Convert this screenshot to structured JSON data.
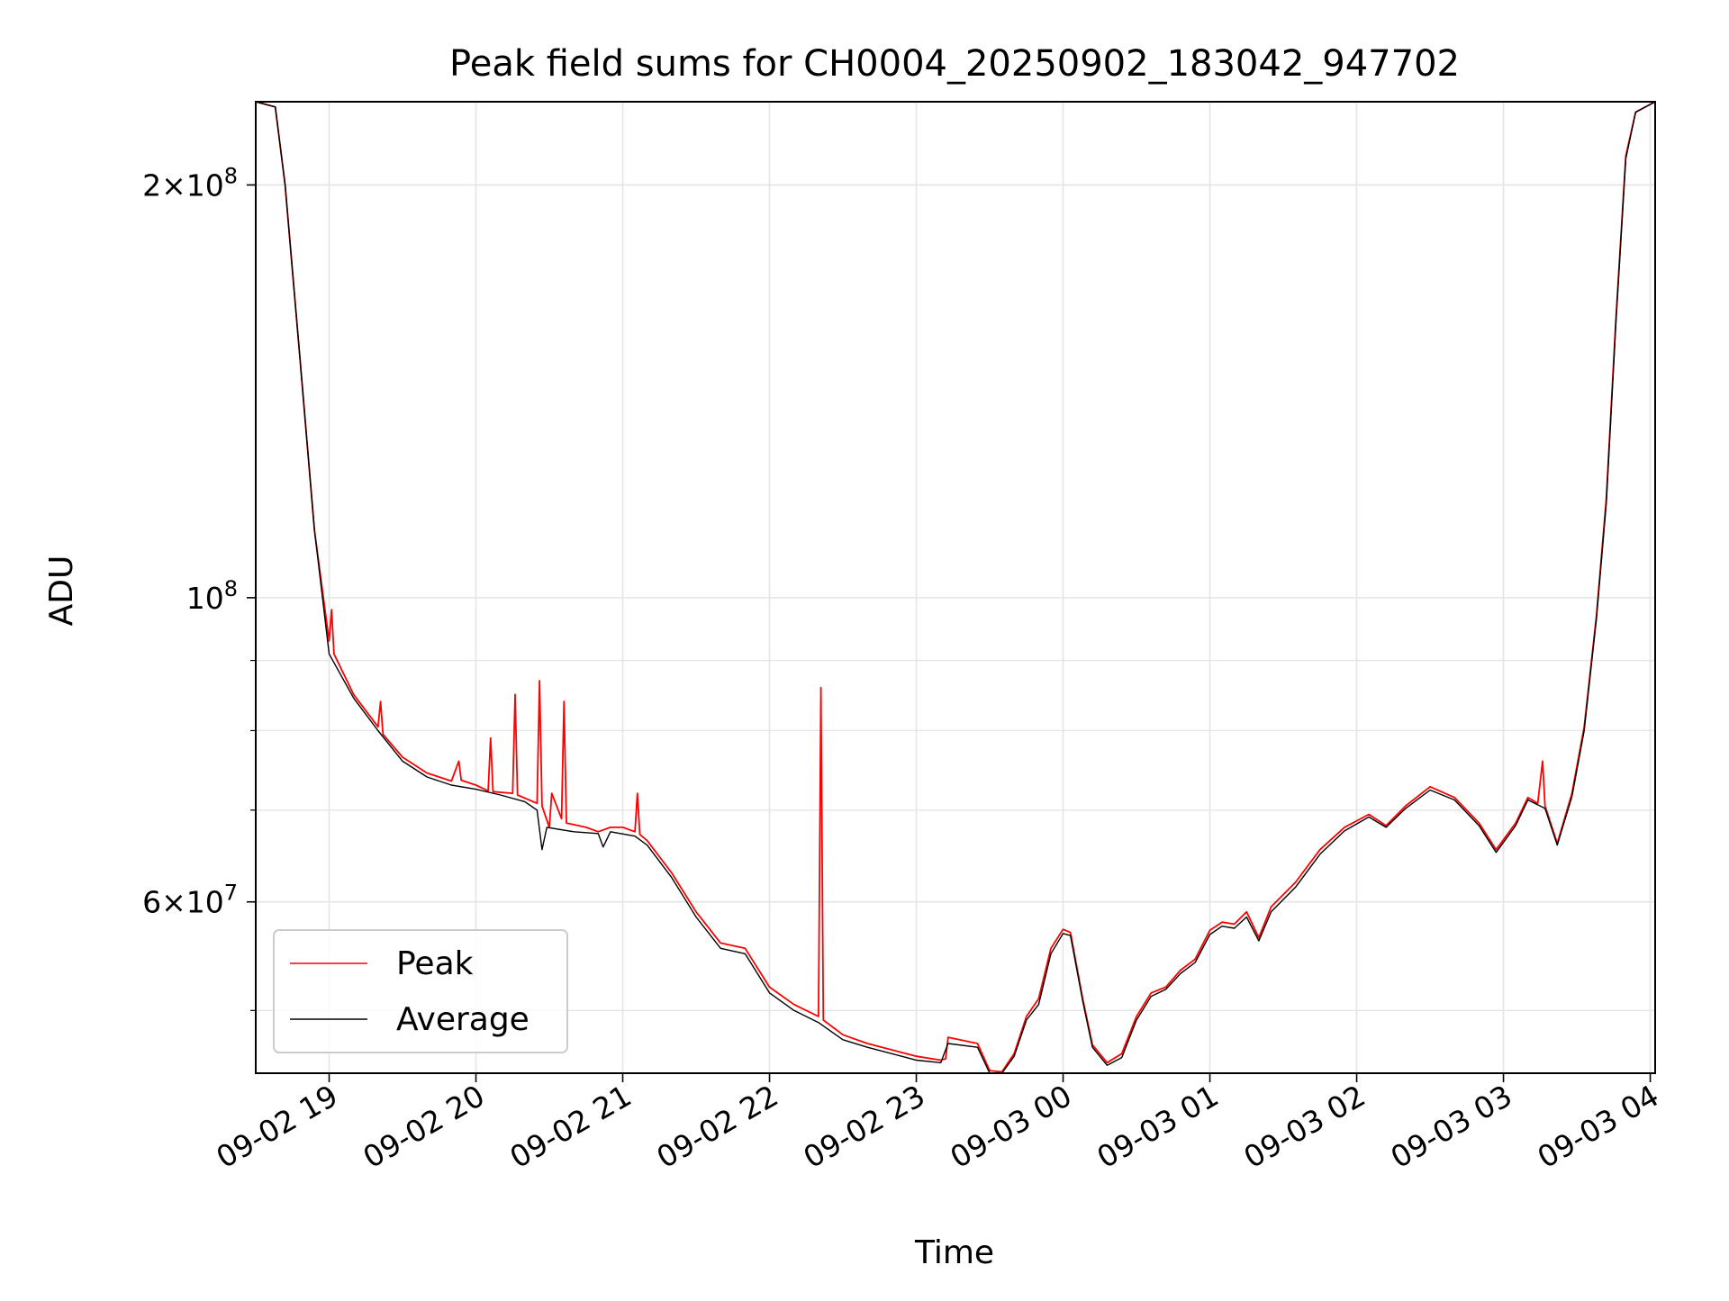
{
  "chart_data": {
    "type": "line",
    "title": "Peak field sums for CH0004_20250902_183042_947702",
    "xlabel": "Time",
    "ylabel": "ADU",
    "y_scale": "log",
    "grid": true,
    "legend_placement": "lower-left",
    "xlim": [
      "2025-09-02 18:30",
      "2025-09-03 04:02"
    ],
    "ylim": [
      45000000,
      230000000
    ],
    "x_ticks": [
      {
        "label": "09-02 19",
        "t": "2025-09-02 19:00"
      },
      {
        "label": "09-02 20",
        "t": "2025-09-02 20:00"
      },
      {
        "label": "09-02 21",
        "t": "2025-09-02 21:00"
      },
      {
        "label": "09-02 22",
        "t": "2025-09-02 22:00"
      },
      {
        "label": "09-02 23",
        "t": "2025-09-02 23:00"
      },
      {
        "label": "09-03 00",
        "t": "2025-09-03 00:00"
      },
      {
        "label": "09-03 01",
        "t": "2025-09-03 01:00"
      },
      {
        "label": "09-03 02",
        "t": "2025-09-03 02:00"
      },
      {
        "label": "09-03 03",
        "t": "2025-09-03 03:00"
      },
      {
        "label": "09-03 04",
        "t": "2025-09-03 04:00"
      }
    ],
    "y_ticks_major": [
      {
        "value": 100000000,
        "base": "10",
        "exp": "8"
      },
      {
        "value": 200000000,
        "mant": "2",
        "base": "10",
        "exp": "8"
      },
      {
        "value": 60000000,
        "mant": "6",
        "base": "10",
        "exp": "7"
      }
    ],
    "y_ticks_minor": [
      50000000,
      60000000,
      70000000,
      80000000,
      90000000,
      200000000
    ],
    "series": [
      {
        "name": "Peak",
        "color": "#ff0000",
        "points": [
          [
            "2025-09-02 18:30",
            230000000
          ],
          [
            "2025-09-02 18:38",
            228000000
          ],
          [
            "2025-09-02 18:42",
            200000000
          ],
          [
            "2025-09-02 18:48",
            150000000
          ],
          [
            "2025-09-02 18:54",
            112000000
          ],
          [
            "2025-09-02 19:00",
            93000000
          ],
          [
            "2025-09-02 19:01",
            98000000
          ],
          [
            "2025-09-02 19:02",
            91000000
          ],
          [
            "2025-09-02 19:10",
            85000000
          ],
          [
            "2025-09-02 19:20",
            80500000
          ],
          [
            "2025-09-02 19:21",
            84000000
          ],
          [
            "2025-09-02 19:22",
            79500000
          ],
          [
            "2025-09-02 19:30",
            76500000
          ],
          [
            "2025-09-02 19:40",
            74500000
          ],
          [
            "2025-09-02 19:50",
            73500000
          ],
          [
            "2025-09-02 19:53",
            76000000
          ],
          [
            "2025-09-02 19:54",
            73600000
          ],
          [
            "2025-09-02 20:00",
            73000000
          ],
          [
            "2025-09-02 20:05",
            72300000
          ],
          [
            "2025-09-02 20:06",
            79000000
          ],
          [
            "2025-09-02 20:07",
            72200000
          ],
          [
            "2025-09-02 20:15",
            72000000
          ],
          [
            "2025-09-02 20:16",
            85000000
          ],
          [
            "2025-09-02 20:17",
            71800000
          ],
          [
            "2025-09-02 20:25",
            70800000
          ],
          [
            "2025-09-02 20:26",
            87000000
          ],
          [
            "2025-09-02 20:27",
            70500000
          ],
          [
            "2025-09-02 20:30",
            68000000
          ],
          [
            "2025-09-02 20:31",
            72000000
          ],
          [
            "2025-09-02 20:35",
            69000000
          ],
          [
            "2025-09-02 20:36",
            84000000
          ],
          [
            "2025-09-02 20:37",
            68500000
          ],
          [
            "2025-09-02 20:45",
            68000000
          ],
          [
            "2025-09-02 20:50",
            67500000
          ],
          [
            "2025-09-02 20:55",
            68000000
          ],
          [
            "2025-09-02 21:00",
            68000000
          ],
          [
            "2025-09-02 21:05",
            67500000
          ],
          [
            "2025-09-02 21:06",
            72000000
          ],
          [
            "2025-09-02 21:07",
            67200000
          ],
          [
            "2025-09-02 21:10",
            66500000
          ],
          [
            "2025-09-02 21:20",
            63000000
          ],
          [
            "2025-09-02 21:30",
            59000000
          ],
          [
            "2025-09-02 21:40",
            56000000
          ],
          [
            "2025-09-02 21:50",
            55500000
          ],
          [
            "2025-09-02 22:00",
            52000000
          ],
          [
            "2025-09-02 22:10",
            50500000
          ],
          [
            "2025-09-02 22:20",
            49500000
          ],
          [
            "2025-09-02 22:21",
            86000000
          ],
          [
            "2025-09-02 22:22",
            49200000
          ],
          [
            "2025-09-02 22:30",
            48000000
          ],
          [
            "2025-09-02 22:40",
            47300000
          ],
          [
            "2025-09-02 22:50",
            46800000
          ],
          [
            "2025-09-02 23:00",
            46300000
          ],
          [
            "2025-09-02 23:10",
            46000000
          ],
          [
            "2025-09-02 23:12",
            46100000
          ],
          [
            "2025-09-02 23:13",
            47800000
          ],
          [
            "2025-09-02 23:25",
            47300000
          ],
          [
            "2025-09-02 23:30",
            45200000
          ],
          [
            "2025-09-02 23:35",
            45100000
          ],
          [
            "2025-09-02 23:40",
            46500000
          ],
          [
            "2025-09-02 23:45",
            49500000
          ],
          [
            "2025-09-02 23:50",
            51000000
          ],
          [
            "2025-09-02 23:55",
            55500000
          ],
          [
            "2025-09-03 00:00",
            57300000
          ],
          [
            "2025-09-03 00:03",
            57000000
          ],
          [
            "2025-09-03 00:08",
            51000000
          ],
          [
            "2025-09-03 00:12",
            47200000
          ],
          [
            "2025-09-03 00:18",
            45800000
          ],
          [
            "2025-09-03 00:24",
            46500000
          ],
          [
            "2025-09-03 00:30",
            49500000
          ],
          [
            "2025-09-03 00:36",
            51500000
          ],
          [
            "2025-09-03 00:42",
            52000000
          ],
          [
            "2025-09-03 00:48",
            53500000
          ],
          [
            "2025-09-03 00:54",
            54500000
          ],
          [
            "2025-09-03 01:00",
            57200000
          ],
          [
            "2025-09-03 01:05",
            58000000
          ],
          [
            "2025-09-03 01:10",
            57800000
          ],
          [
            "2025-09-03 01:15",
            59000000
          ],
          [
            "2025-09-03 01:20",
            56500000
          ],
          [
            "2025-09-03 01:25",
            59500000
          ],
          [
            "2025-09-03 01:35",
            62000000
          ],
          [
            "2025-09-03 01:45",
            65500000
          ],
          [
            "2025-09-03 01:55",
            68000000
          ],
          [
            "2025-09-03 02:05",
            69500000
          ],
          [
            "2025-09-03 02:12",
            68200000
          ],
          [
            "2025-09-03 02:20",
            70500000
          ],
          [
            "2025-09-03 02:30",
            72800000
          ],
          [
            "2025-09-03 02:40",
            71500000
          ],
          [
            "2025-09-03 02:50",
            68500000
          ],
          [
            "2025-09-03 02:57",
            65500000
          ],
          [
            "2025-09-03 03:05",
            68500000
          ],
          [
            "2025-09-03 03:10",
            71500000
          ],
          [
            "2025-09-03 03:14",
            70800000
          ],
          [
            "2025-09-03 03:16",
            76000000
          ],
          [
            "2025-09-03 03:17",
            70500000
          ],
          [
            "2025-09-03 03:22",
            66200000
          ],
          [
            "2025-09-03 03:28",
            72000000
          ],
          [
            "2025-09-03 03:33",
            80500000
          ],
          [
            "2025-09-03 03:38",
            97000000
          ],
          [
            "2025-09-03 03:42",
            118000000
          ],
          [
            "2025-09-03 03:46",
            160000000
          ],
          [
            "2025-09-03 03:50",
            210000000
          ],
          [
            "2025-09-03 03:54",
            226000000
          ],
          [
            "2025-09-03 04:02",
            230000000
          ]
        ]
      },
      {
        "name": "Average",
        "color": "#000000",
        "points": [
          [
            "2025-09-02 18:30",
            230000000
          ],
          [
            "2025-09-02 18:38",
            228000000
          ],
          [
            "2025-09-02 18:42",
            200000000
          ],
          [
            "2025-09-02 18:48",
            150000000
          ],
          [
            "2025-09-02 18:54",
            112000000
          ],
          [
            "2025-09-02 19:00",
            91000000
          ],
          [
            "2025-09-02 19:10",
            84500000
          ],
          [
            "2025-09-02 19:20",
            80000000
          ],
          [
            "2025-09-02 19:30",
            76000000
          ],
          [
            "2025-09-02 19:40",
            74000000
          ],
          [
            "2025-09-02 19:50",
            73000000
          ],
          [
            "2025-09-02 20:00",
            72500000
          ],
          [
            "2025-09-02 20:10",
            71800000
          ],
          [
            "2025-09-02 20:20",
            71000000
          ],
          [
            "2025-09-02 20:25",
            70000000
          ],
          [
            "2025-09-02 20:27",
            65500000
          ],
          [
            "2025-09-02 20:29",
            68000000
          ],
          [
            "2025-09-02 20:40",
            67500000
          ],
          [
            "2025-09-02 20:50",
            67300000
          ],
          [
            "2025-09-02 20:52",
            65800000
          ],
          [
            "2025-09-02 20:55",
            67500000
          ],
          [
            "2025-09-02 21:05",
            67000000
          ],
          [
            "2025-09-02 21:10",
            66000000
          ],
          [
            "2025-09-02 21:20",
            62500000
          ],
          [
            "2025-09-02 21:30",
            58500000
          ],
          [
            "2025-09-02 21:40",
            55500000
          ],
          [
            "2025-09-02 21:50",
            55000000
          ],
          [
            "2025-09-02 22:00",
            51500000
          ],
          [
            "2025-09-02 22:10",
            50000000
          ],
          [
            "2025-09-02 22:20",
            49000000
          ],
          [
            "2025-09-02 22:30",
            47600000
          ],
          [
            "2025-09-02 22:40",
            47000000
          ],
          [
            "2025-09-02 22:50",
            46500000
          ],
          [
            "2025-09-02 23:00",
            46000000
          ],
          [
            "2025-09-02 23:10",
            45800000
          ],
          [
            "2025-09-02 23:13",
            47300000
          ],
          [
            "2025-09-02 23:25",
            47000000
          ],
          [
            "2025-09-02 23:30",
            45000000
          ],
          [
            "2025-09-02 23:35",
            45000000
          ],
          [
            "2025-09-02 23:40",
            46300000
          ],
          [
            "2025-09-02 23:45",
            49200000
          ],
          [
            "2025-09-02 23:50",
            50500000
          ],
          [
            "2025-09-02 23:55",
            55000000
          ],
          [
            "2025-09-03 00:00",
            56900000
          ],
          [
            "2025-09-03 00:03",
            56700000
          ],
          [
            "2025-09-03 00:08",
            50800000
          ],
          [
            "2025-09-03 00:12",
            47000000
          ],
          [
            "2025-09-03 00:18",
            45600000
          ],
          [
            "2025-09-03 00:24",
            46200000
          ],
          [
            "2025-09-03 00:30",
            49200000
          ],
          [
            "2025-09-03 00:36",
            51200000
          ],
          [
            "2025-09-03 00:42",
            51800000
          ],
          [
            "2025-09-03 00:48",
            53200000
          ],
          [
            "2025-09-03 00:54",
            54200000
          ],
          [
            "2025-09-03 01:00",
            56800000
          ],
          [
            "2025-09-03 01:05",
            57600000
          ],
          [
            "2025-09-03 01:10",
            57400000
          ],
          [
            "2025-09-03 01:15",
            58500000
          ],
          [
            "2025-09-03 01:20",
            56200000
          ],
          [
            "2025-09-03 01:25",
            59000000
          ],
          [
            "2025-09-03 01:35",
            61500000
          ],
          [
            "2025-09-03 01:45",
            65000000
          ],
          [
            "2025-09-03 01:55",
            67600000
          ],
          [
            "2025-09-03 02:05",
            69200000
          ],
          [
            "2025-09-03 02:12",
            68000000
          ],
          [
            "2025-09-03 02:20",
            70200000
          ],
          [
            "2025-09-03 02:30",
            72400000
          ],
          [
            "2025-09-03 02:40",
            71200000
          ],
          [
            "2025-09-03 02:50",
            68200000
          ],
          [
            "2025-09-03 02:57",
            65200000
          ],
          [
            "2025-09-03 03:05",
            68200000
          ],
          [
            "2025-09-03 03:10",
            71200000
          ],
          [
            "2025-09-03 03:17",
            70200000
          ],
          [
            "2025-09-03 03:22",
            66000000
          ],
          [
            "2025-09-03 03:28",
            71600000
          ],
          [
            "2025-09-03 03:33",
            80000000
          ],
          [
            "2025-09-03 03:38",
            96500000
          ],
          [
            "2025-09-03 03:42",
            117000000
          ],
          [
            "2025-09-03 03:46",
            159000000
          ],
          [
            "2025-09-03 03:50",
            209000000
          ],
          [
            "2025-09-03 03:54",
            226000000
          ],
          [
            "2025-09-03 04:02",
            230000000
          ]
        ]
      }
    ]
  }
}
